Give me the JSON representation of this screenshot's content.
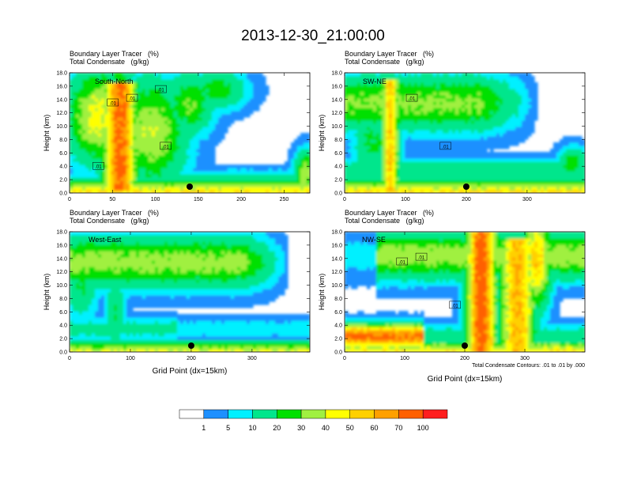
{
  "title": "2013-12-30_21:00:00",
  "colors": [
    "#ffffff",
    "#1e90ff",
    "#00f0ff",
    "#00e68c",
    "#00e000",
    "#a0f040",
    "#ffff00",
    "#ffd000",
    "#ffa000",
    "#ff6000",
    "#ff1e1e"
  ],
  "chart_data": [
    {
      "type": "heatmap",
      "subtitle1": "Boundary Layer Tracer   (%)",
      "subtitle2": "Total Condensate   (g/kg)",
      "label": "South-North",
      "ylabel": "Height (km)",
      "xlabel": "",
      "xlim": [
        0,
        280
      ],
      "ylim": [
        0,
        18
      ],
      "xticks": [
        0,
        50,
        100,
        150,
        200,
        250
      ],
      "yticks": [
        0.0,
        2.0,
        4.0,
        6.0,
        8.0,
        10.0,
        12.0,
        14.0,
        16.0,
        18.0
      ],
      "marker_x": 140,
      "contour_labels": [
        ".01",
        ".01",
        ".01",
        ".01",
        ".01"
      ]
    },
    {
      "type": "heatmap",
      "subtitle1": "Boundary Layer Tracer   (%)",
      "subtitle2": "Total Condensate   (g/kg)",
      "label": "SW-NE",
      "ylabel": "Height (km)",
      "xlabel": "",
      "xlim": [
        0,
        395
      ],
      "ylim": [
        0,
        18
      ],
      "xticks": [
        0,
        100,
        200,
        300
      ],
      "yticks": [
        0.0,
        2.0,
        4.0,
        6.0,
        8.0,
        10.0,
        12.0,
        14.0,
        16.0,
        18.0
      ],
      "marker_x": 200,
      "contour_labels": [
        ".01",
        ".01"
      ]
    },
    {
      "type": "heatmap",
      "subtitle1": "Boundary Layer Tracer   (%)",
      "subtitle2": "Total Condensate   (g/kg)",
      "label": "West-East",
      "ylabel": "Height (km)",
      "xlabel": "Grid Point (dx=15km)",
      "xlim": [
        0,
        395
      ],
      "ylim": [
        0,
        18
      ],
      "xticks": [
        0,
        100,
        200,
        300
      ],
      "yticks": [
        0.0,
        2.0,
        4.0,
        6.0,
        8.0,
        10.0,
        12.0,
        14.0,
        16.0,
        18.0
      ],
      "marker_x": 200,
      "contour_labels": []
    },
    {
      "type": "heatmap",
      "subtitle1": "Boundary Layer Tracer   (%)",
      "subtitle2": "Total Condensate   (g/kg)",
      "label": "NW-SE",
      "ylabel": "Height (km)",
      "xlabel": "Grid Point (dx=15km)",
      "xlim": [
        0,
        400
      ],
      "ylim": [
        0,
        18
      ],
      "xticks": [
        0,
        100,
        200,
        300
      ],
      "yticks": [
        0.0,
        2.0,
        4.0,
        6.0,
        8.0,
        10.0,
        12.0,
        14.0,
        16.0,
        18.0
      ],
      "marker_x": 200,
      "contour_labels": [
        ".01",
        ".01",
        ".01"
      ]
    }
  ],
  "contour_note": "Total Condensate Contours: .01 to .01 by .000",
  "colorbar": {
    "labels": [
      "1",
      "5",
      "10",
      "20",
      "30",
      "40",
      "50",
      "60",
      "70",
      "100"
    ]
  }
}
